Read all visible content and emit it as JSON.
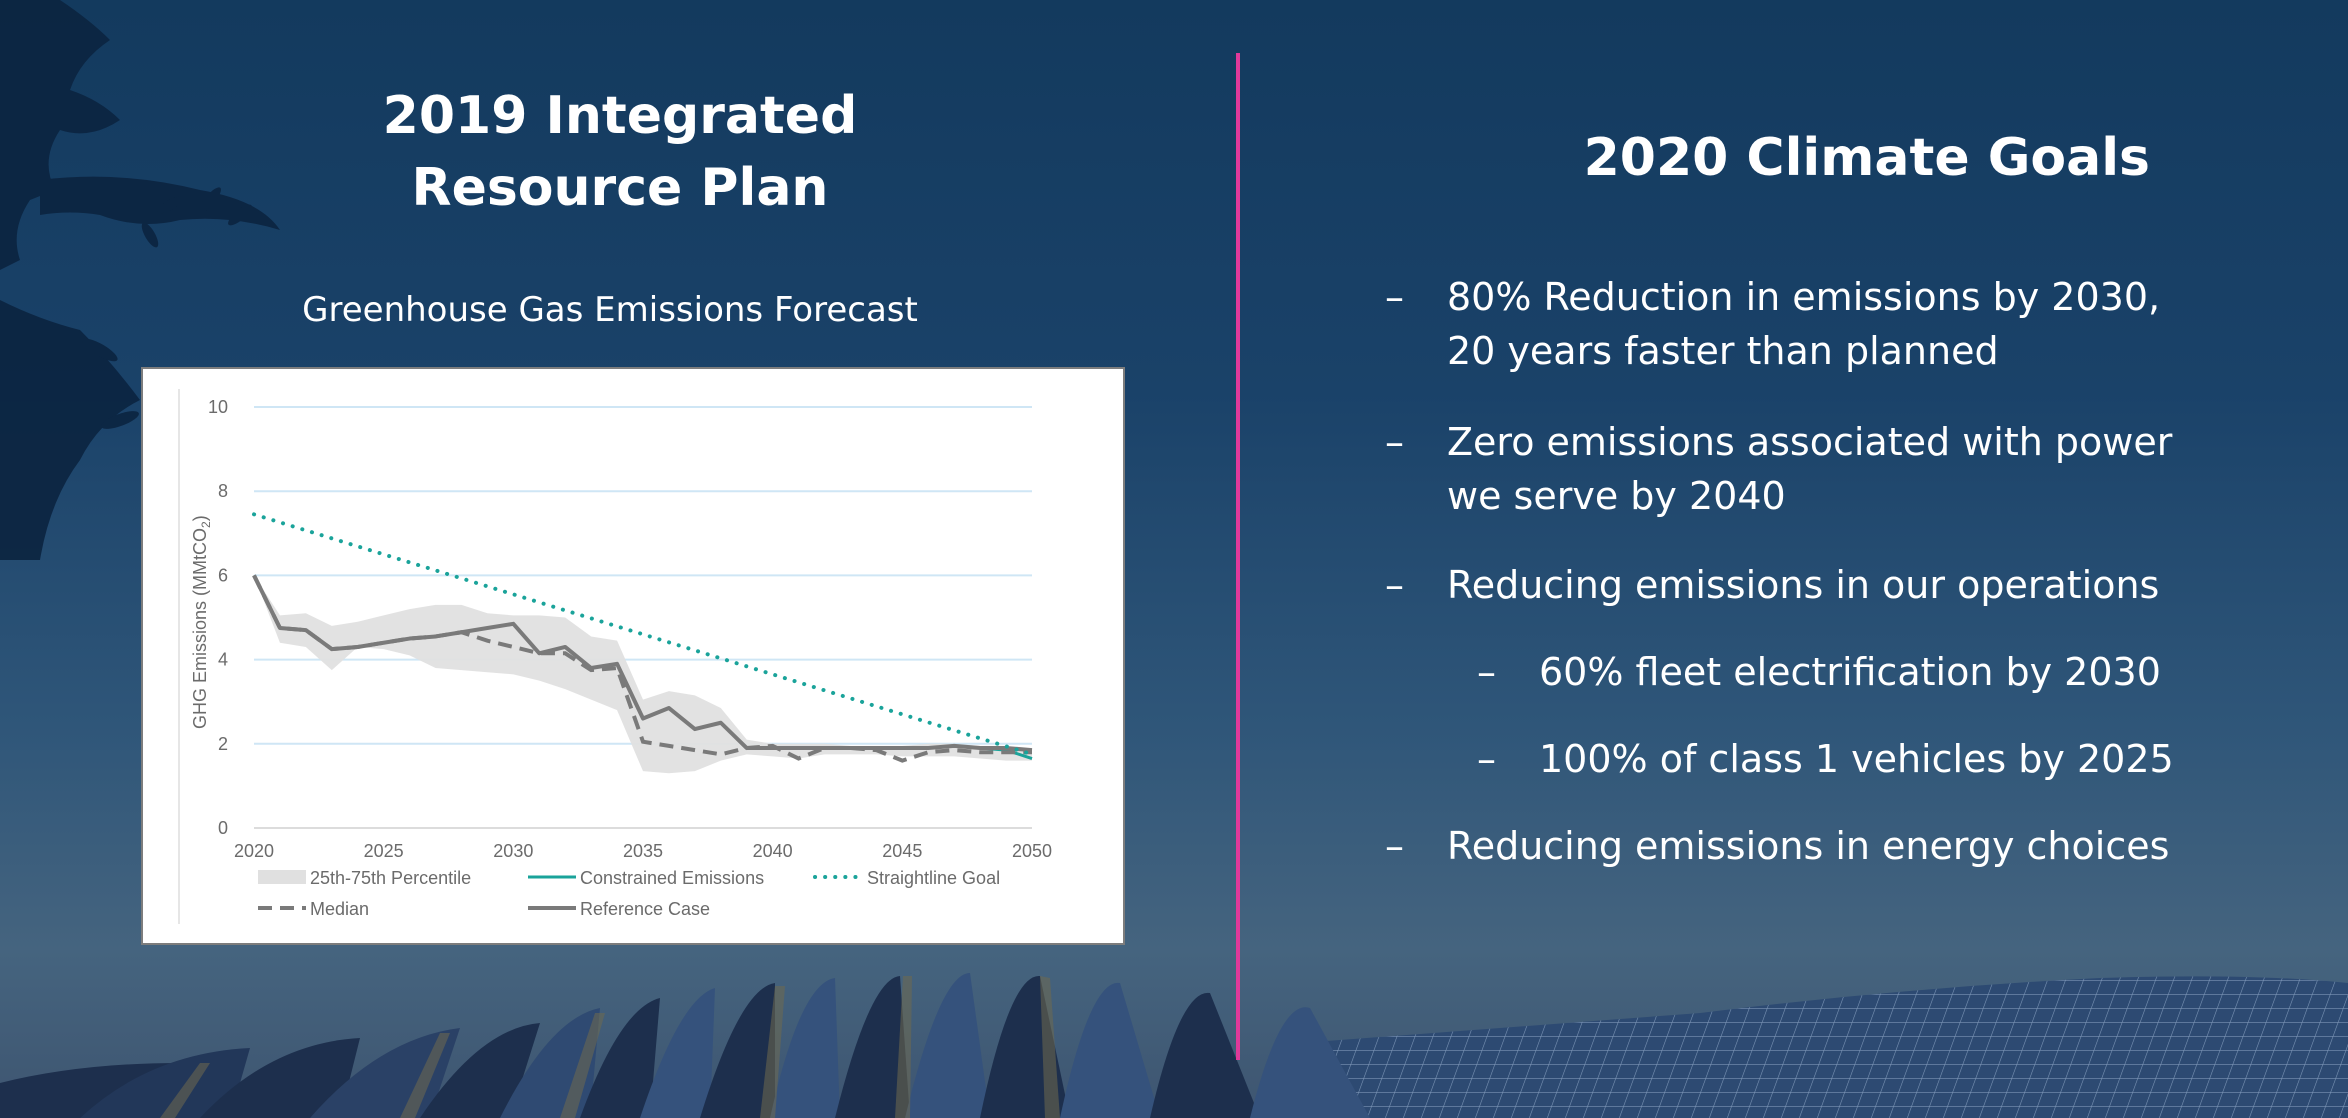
{
  "left_panel": {
    "title_line1": "2019 Integrated",
    "title_line2": "Resource Plan",
    "subtitle": "Greenhouse Gas Emissions Forecast"
  },
  "right_panel": {
    "title": "2020 Climate Goals",
    "bullet_glyph": "–",
    "goals": [
      {
        "text_line1": "80% Reduction in emissions by 2030,",
        "text_line2": "20 years faster than planned",
        "level": 1
      },
      {
        "text_line1": "Zero emissions associated with power",
        "text_line2": "we serve by 2040",
        "level": 1
      },
      {
        "text_line1": "Reducing emissions in our operations",
        "level": 1
      },
      {
        "text_line1": "60% fleet electrification by 2030",
        "level": 2
      },
      {
        "text_line1": "100% of class 1 vehicles by 2025",
        "level": 2
      },
      {
        "text_line1": "Reducing emissions in energy choices",
        "level": 1
      }
    ]
  },
  "colors": {
    "divider": "#e0399a",
    "teal": "#1aa39a",
    "gray_line": "#7a7a7a",
    "band": "#e0e0e0",
    "gridline": "#cfe6f5"
  },
  "chart_data": {
    "type": "line",
    "title": "Greenhouse Gas Emissions Forecast",
    "xlabel": "",
    "ylabel": "GHG Emissions (MMtCO2)",
    "ylabel_display": "GHG Emissions (MMtCO",
    "ylabel_sub": "2",
    "ylabel_close": ")",
    "xlim": [
      2020,
      2050
    ],
    "ylim": [
      0,
      10
    ],
    "xticks": [
      "2020",
      "2025",
      "2030",
      "2035",
      "2040",
      "2045",
      "2050"
    ],
    "yticks": [
      "0",
      "2",
      "4",
      "6",
      "8",
      "10"
    ],
    "grid": true,
    "legend_position": "bottom",
    "x": [
      2020,
      2021,
      2022,
      2023,
      2024,
      2025,
      2026,
      2027,
      2028,
      2029,
      2030,
      2031,
      2032,
      2033,
      2034,
      2035,
      2036,
      2037,
      2038,
      2039,
      2040,
      2041,
      2042,
      2043,
      2044,
      2045,
      2046,
      2047,
      2048,
      2049,
      2050
    ],
    "band": {
      "name": "25th-75th Percentile",
      "upper": [
        6.0,
        5.05,
        5.1,
        4.8,
        4.9,
        5.05,
        5.2,
        5.3,
        5.3,
        5.1,
        5.05,
        5.05,
        5.0,
        4.55,
        4.45,
        3.05,
        3.25,
        3.15,
        2.85,
        2.1,
        2.0,
        2.0,
        2.0,
        1.95,
        1.95,
        1.95,
        2.0,
        2.0,
        1.95,
        1.95,
        1.85
      ],
      "lower": [
        6.0,
        4.4,
        4.3,
        3.75,
        4.3,
        4.25,
        4.1,
        3.8,
        3.75,
        3.7,
        3.65,
        3.5,
        3.3,
        3.05,
        2.8,
        1.35,
        1.3,
        1.35,
        1.6,
        1.75,
        1.7,
        1.65,
        1.75,
        1.75,
        1.75,
        1.7,
        1.7,
        1.7,
        1.65,
        1.6,
        1.6
      ]
    },
    "series": [
      {
        "name": "Reference Case",
        "style": "solid-gray",
        "values": [
          6.0,
          4.75,
          4.7,
          4.25,
          4.3,
          4.4,
          4.5,
          4.55,
          4.65,
          4.75,
          4.85,
          4.15,
          4.3,
          3.8,
          3.9,
          2.6,
          2.85,
          2.35,
          2.5,
          1.9,
          1.9,
          1.9,
          1.9,
          1.9,
          1.9,
          1.9,
          1.9,
          1.95,
          1.9,
          1.9,
          1.85
        ]
      },
      {
        "name": "Median",
        "style": "dashed-gray",
        "values": [
          6.0,
          4.75,
          4.7,
          4.25,
          4.3,
          4.4,
          4.5,
          4.55,
          4.65,
          4.45,
          4.3,
          4.15,
          4.15,
          3.75,
          3.8,
          2.05,
          1.95,
          1.85,
          1.75,
          1.9,
          1.95,
          1.65,
          1.9,
          1.9,
          1.85,
          1.6,
          1.8,
          1.85,
          1.8,
          1.8,
          1.8
        ]
      },
      {
        "name": "Constrained Emissions",
        "style": "solid-teal",
        "values": [
          6.0,
          4.75,
          4.7,
          4.25,
          4.3,
          4.4,
          4.5,
          4.55,
          4.65,
          4.75,
          4.85,
          4.15,
          4.3,
          3.8,
          3.9,
          2.6,
          2.85,
          2.35,
          2.5,
          1.9,
          1.9,
          1.9,
          1.9,
          1.9,
          1.9,
          1.9,
          1.9,
          1.95,
          1.9,
          1.85,
          1.65
        ]
      },
      {
        "name": "Straightline Goal",
        "style": "dotted-teal",
        "x": [
          2020,
          2050
        ],
        "values": [
          7.45,
          1.75
        ]
      }
    ],
    "legend": [
      {
        "label": "25th-75th Percentile",
        "kind": "band"
      },
      {
        "label": "Constrained Emissions",
        "kind": "solid-teal"
      },
      {
        "label": "Straightline Goal",
        "kind": "dotted-teal"
      },
      {
        "label": "Median",
        "kind": "dashed-gray"
      },
      {
        "label": "Reference Case",
        "kind": "solid-gray"
      }
    ]
  }
}
